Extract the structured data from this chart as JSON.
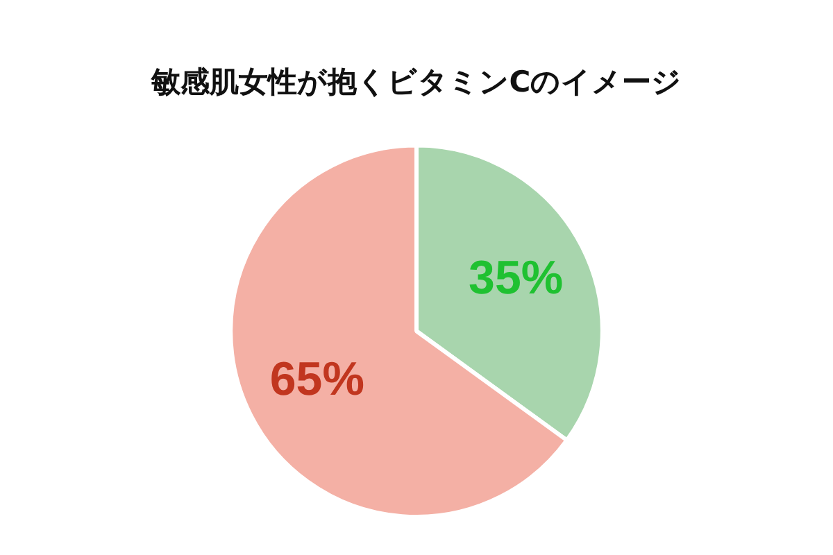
{
  "chart_data": {
    "type": "pie",
    "title": "敏感肌女性が抱くビタミンCのイメージ",
    "categories": [
      null,
      null
    ],
    "values": [
      35,
      65
    ],
    "colors": [
      "#a8d5ad",
      "#f4b0a5"
    ],
    "value_labels": [
      "35%",
      "65%"
    ],
    "legend": false
  }
}
